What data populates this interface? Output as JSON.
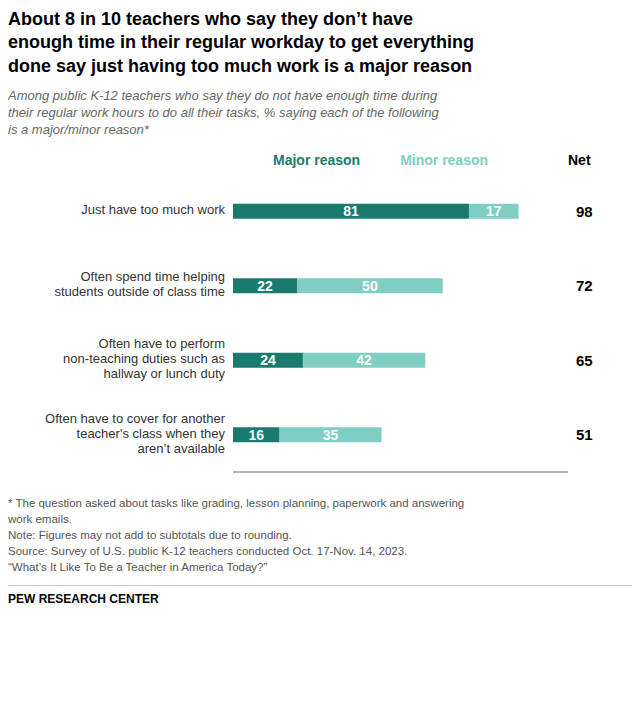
{
  "chart_data": {
    "type": "bar",
    "orientation": "horizontal",
    "stacked": true,
    "data_labels": true,
    "tick_labels": "y",
    "grid": false,
    "legend": "top",
    "title": "About 8 in 10 teachers who say they don’t have\nenough time in their regular workday to get everything\ndone say just having too much work is a major reason",
    "subtitle": "Among public K-12 teachers who say they do not have enough time during\ntheir regular work hours to do all their tasks, % saying each of the following\nis a major/minor reason*",
    "categories": [
      "Just have too much work",
      "Often spend time helping\nstudents outside of class time",
      "Often have to perform\nnon-teaching duties such as\nhallway or lunch duty",
      "Often have to cover for another\nteacher's class when they\naren’t available"
    ],
    "series": [
      {
        "name": "Major reason",
        "color": "#1a7a6e",
        "values": [
          81,
          22,
          24,
          16
        ]
      },
      {
        "name": "Minor reason",
        "color": "#7ecec4",
        "values": [
          17,
          50,
          42,
          35
        ]
      }
    ],
    "net": {
      "label": "Net",
      "values": [
        98,
        72,
        65,
        51
      ]
    },
    "xlim": [
      0,
      115
    ],
    "notes": [
      "* The question asked about tasks like grading, lesson planning, paperwork and answering",
      "work emails.",
      "Note: Figures may not add to subtotals due to rounding.",
      "Source: Survey of U.S. public K-12 teachers conducted Oct. 17-Nov. 14, 2023.",
      "“What’s It Like To Be a Teacher in America Today?”"
    ],
    "source": "PEW RESEARCH CENTER"
  }
}
